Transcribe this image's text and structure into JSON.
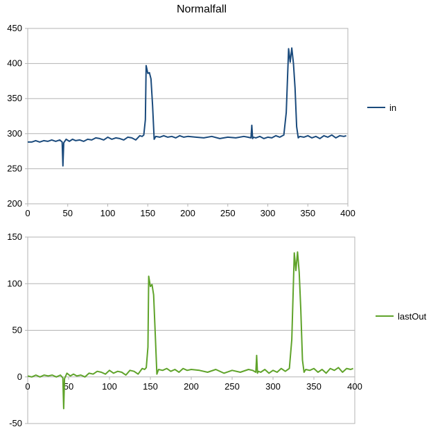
{
  "chart_data": [
    {
      "type": "line",
      "title": "Normalfall",
      "xlim": [
        0,
        400
      ],
      "ylim": [
        200,
        450
      ],
      "xticks": [
        0,
        50,
        100,
        150,
        200,
        250,
        300,
        350,
        400
      ],
      "yticks": [
        200,
        250,
        300,
        350,
        400,
        450
      ],
      "grid": true,
      "legend_position": "right",
      "series": [
        {
          "name": "in",
          "color": "#1a4a7c",
          "x": [
            0,
            5,
            10,
            15,
            20,
            25,
            30,
            35,
            40,
            43,
            44,
            45,
            48,
            52,
            56,
            60,
            65,
            70,
            75,
            80,
            85,
            90,
            95,
            100,
            105,
            110,
            115,
            120,
            125,
            130,
            135,
            140,
            143,
            145,
            147,
            148,
            150,
            152,
            154,
            156,
            158,
            160,
            165,
            170,
            175,
            180,
            185,
            190,
            195,
            200,
            210,
            220,
            230,
            240,
            250,
            260,
            270,
            275,
            279,
            280,
            281,
            282,
            285,
            290,
            295,
            300,
            305,
            310,
            315,
            320,
            323,
            326,
            328,
            330,
            332,
            334,
            336,
            338,
            340,
            345,
            350,
            355,
            360,
            365,
            370,
            375,
            380,
            385,
            390,
            395,
            398
          ],
          "y": [
            288,
            288,
            290,
            288,
            290,
            289,
            291,
            289,
            291,
            288,
            254,
            287,
            292,
            289,
            292,
            290,
            291,
            289,
            292,
            291,
            294,
            293,
            291,
            295,
            292,
            294,
            293,
            291,
            295,
            294,
            291,
            297,
            296,
            298,
            320,
            397,
            386,
            387,
            378,
            340,
            292,
            296,
            295,
            297,
            295,
            296,
            294,
            297,
            295,
            296,
            295,
            294,
            296,
            293,
            295,
            294,
            296,
            295,
            294,
            312,
            293,
            295,
            294,
            296,
            293,
            295,
            294,
            297,
            295,
            298,
            330,
            421,
            402,
            422,
            400,
            365,
            310,
            294,
            296,
            295,
            297,
            294,
            296,
            293,
            297,
            295,
            298,
            294,
            297,
            296,
            297
          ]
        }
      ]
    },
    {
      "type": "line",
      "title": "",
      "xlim": [
        0,
        400
      ],
      "ylim": [
        -50,
        150
      ],
      "xticks": [
        0,
        50,
        100,
        150,
        200,
        250,
        300,
        350,
        400
      ],
      "yticks": [
        -50,
        0,
        50,
        100,
        150
      ],
      "grid": true,
      "legend_position": "right",
      "series": [
        {
          "name": "lastOut",
          "color": "#5fa32a",
          "x": [
            0,
            5,
            10,
            15,
            20,
            25,
            30,
            35,
            40,
            43,
            44,
            45,
            48,
            52,
            56,
            60,
            65,
            70,
            75,
            80,
            85,
            90,
            95,
            100,
            105,
            110,
            115,
            120,
            125,
            130,
            135,
            140,
            143,
            145,
            147,
            148,
            150,
            152,
            154,
            156,
            158,
            160,
            165,
            170,
            175,
            180,
            185,
            190,
            195,
            200,
            210,
            220,
            230,
            240,
            250,
            260,
            270,
            275,
            279,
            280,
            281,
            282,
            285,
            290,
            295,
            300,
            305,
            310,
            315,
            320,
            323,
            326,
            328,
            330,
            332,
            334,
            336,
            338,
            340,
            345,
            350,
            355,
            360,
            365,
            370,
            375,
            380,
            385,
            390,
            395,
            398
          ],
          "y": [
            1,
            0,
            2,
            0,
            2,
            1,
            2,
            0,
            2,
            -1,
            -34,
            -2,
            4,
            1,
            3,
            1,
            2,
            0,
            4,
            3,
            6,
            5,
            3,
            7,
            4,
            6,
            5,
            2,
            7,
            6,
            3,
            9,
            8,
            10,
            32,
            108,
            97,
            99,
            88,
            45,
            3,
            8,
            7,
            9,
            6,
            8,
            5,
            9,
            7,
            8,
            7,
            5,
            8,
            4,
            7,
            5,
            8,
            7,
            5,
            23,
            4,
            6,
            5,
            8,
            4,
            7,
            5,
            9,
            6,
            9,
            40,
            133,
            114,
            134,
            112,
            72,
            18,
            5,
            8,
            7,
            9,
            5,
            8,
            4,
            9,
            7,
            10,
            5,
            9,
            8,
            9
          ]
        }
      ]
    }
  ]
}
